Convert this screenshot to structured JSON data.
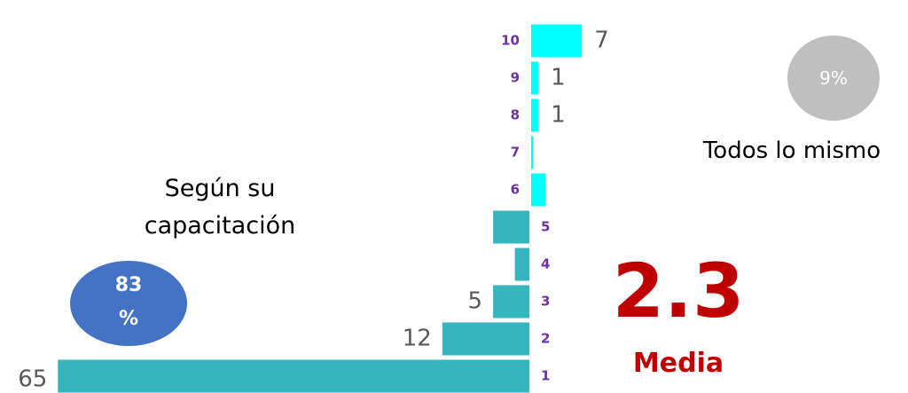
{
  "chart_data": {
    "type": "bar",
    "series": [
      {
        "direction": "left",
        "color": "#36b5bf",
        "categories": [
          "1",
          "2",
          "3",
          "4",
          "5"
        ],
        "values": [
          65,
          12,
          5,
          2,
          5
        ],
        "value_labels": [
          "65",
          "12",
          "5",
          null,
          null
        ]
      },
      {
        "direction": "right",
        "color": "#00ffff",
        "categories": [
          "6",
          "7",
          "8",
          "9",
          "10"
        ],
        "values": [
          2,
          0.3,
          1,
          1,
          7
        ],
        "value_labels": [
          null,
          null,
          "1",
          "1",
          "7"
        ]
      }
    ],
    "annotations": {
      "left_group": {
        "label": "Según su capacitación",
        "value": 83,
        "value_label": "83 %",
        "color": "#4472c4"
      },
      "right_group": {
        "label": "Todos lo mismo",
        "value": 9,
        "value_label": "9%",
        "color": "#bfbfbf"
      },
      "mean": {
        "value": 2.3,
        "label": "Media",
        "color": "#c00000"
      }
    }
  }
}
